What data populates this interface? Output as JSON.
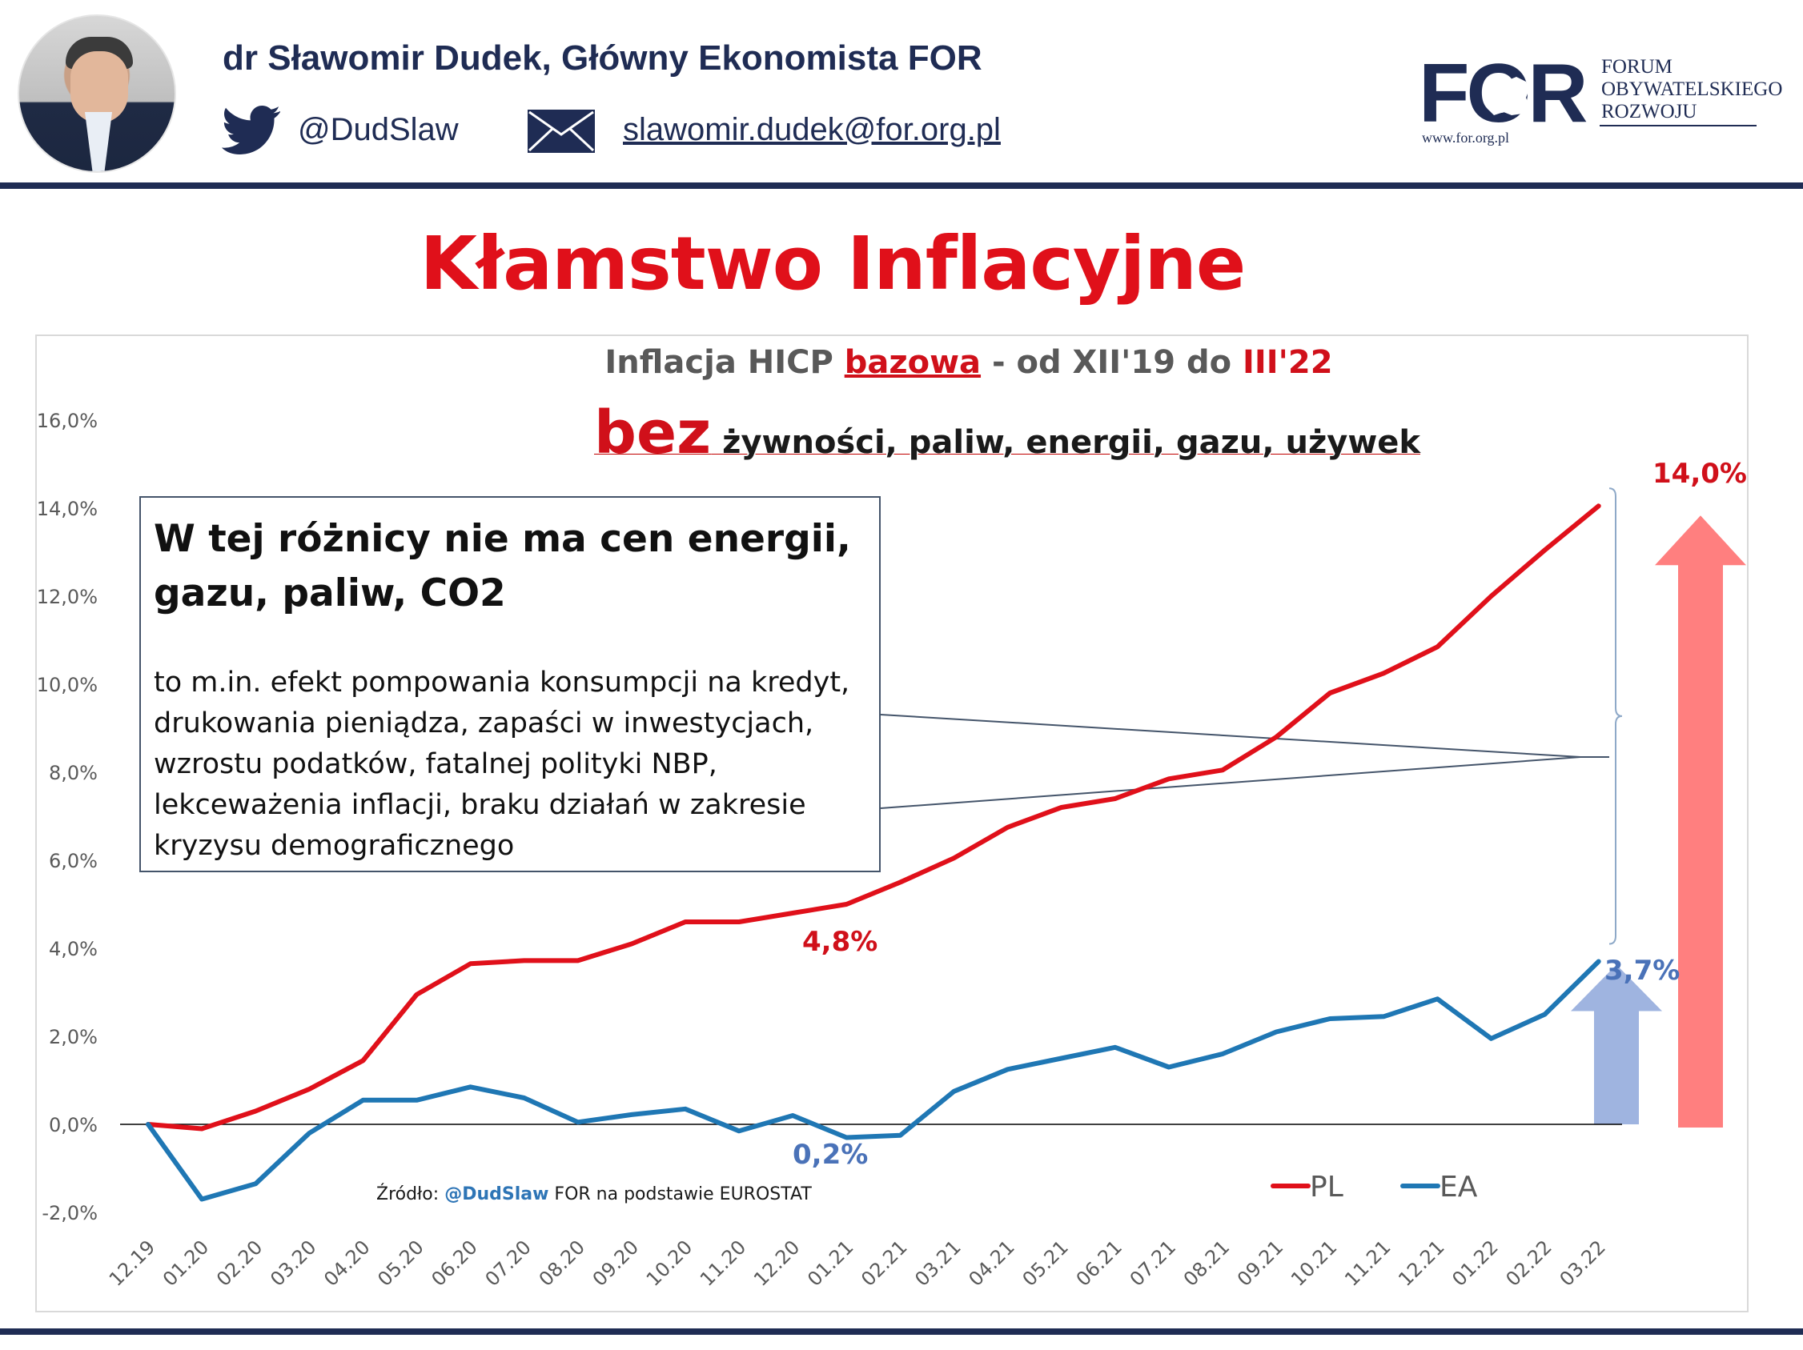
{
  "header": {
    "author": "dr Sławomir Dudek, Główny Ekonomista FOR",
    "twitter_handle": "@DudSlaw",
    "email": "slawomir.dudek@for.org.pl",
    "logo": {
      "mark": "FOR",
      "name_lines": [
        "FORUM",
        "OBYWATELSKIEGO",
        "ROZWOJU"
      ],
      "url": "www.for.org.pl"
    },
    "icons": [
      "avatar-photo",
      "twitter-bird-icon",
      "envelope-icon",
      "poland-map-icon"
    ],
    "colors": {
      "navy": "#1f2c54",
      "red": "#e0101a"
    }
  },
  "main_title": "Kłamstwo Inflacyjne",
  "subtitle": {
    "part1": "Inflacja HICP ",
    "part2": "bazowa",
    "part3": " - od XII'19 do ",
    "part4": "III'22"
  },
  "bez_line": {
    "big": "bez",
    "rest": " żywności, paliw, energii, gazu, używek"
  },
  "note": {
    "title_line1": "W tej różnicy nie ma cen energii,",
    "title_line2": "gazu, paliw, CO2",
    "body_lines": [
      "to m.in. efekt pompowania konsumpcji na kredyt,",
      "drukowania pieniądza, zapaści w inwestycjach,",
      "wzrostu podatków, fatalnej polityki NBP,",
      "lekceważenia inflacji, braku działań w zakresie",
      "kryzysu demograficznego"
    ]
  },
  "source": {
    "prefix": "Źródło: ",
    "handle": "@DudSlaw",
    "suffix": " FOR na podstawie EUROSTAT"
  },
  "chart_data": {
    "type": "line",
    "x": [
      "12.19",
      "01.20",
      "02.20",
      "03.20",
      "04.20",
      "05.20",
      "06.20",
      "07.20",
      "08.20",
      "09.20",
      "10.20",
      "11.20",
      "12.20",
      "01.21",
      "02.21",
      "03.21",
      "04.21",
      "05.21",
      "06.21",
      "07.21",
      "08.21",
      "09.21",
      "10.21",
      "11.21",
      "12.21",
      "01.22",
      "02.22",
      "03.22"
    ],
    "series": [
      {
        "name": "PL",
        "color": "#e0101a",
        "values": [
          0.0,
          -0.1,
          0.3,
          0.8,
          1.45,
          2.95,
          3.65,
          3.72,
          3.72,
          4.1,
          4.6,
          4.6,
          4.8,
          5.0,
          5.5,
          6.05,
          6.75,
          7.2,
          7.4,
          7.85,
          8.05,
          8.8,
          9.8,
          10.25,
          10.85,
          12.0,
          13.05,
          14.05
        ]
      },
      {
        "name": "EA",
        "color": "#1f77b4",
        "values": [
          0.0,
          -1.7,
          -1.35,
          -0.2,
          0.55,
          0.55,
          0.85,
          0.6,
          0.05,
          0.22,
          0.35,
          -0.15,
          0.2,
          -0.3,
          -0.25,
          0.75,
          1.25,
          1.5,
          1.75,
          1.3,
          1.6,
          2.1,
          2.4,
          2.45,
          2.85,
          1.95,
          2.5,
          3.7
        ]
      }
    ],
    "y_ticks": [
      "16,0%",
      "14,0%",
      "12,0%",
      "10,0%",
      "8,0%",
      "6,0%",
      "4,0%",
      "2,0%",
      "0,0%",
      "-2,0%"
    ],
    "ylim": [
      -2.0,
      16.0
    ],
    "annotations": {
      "pl_end": "14,0%",
      "ea_end": "3,7%",
      "pl_mid": "4,8%",
      "ea_mid": "0,2%"
    },
    "arrow_colors": {
      "pl": "#ff7f7f",
      "ea": "#9fb4e0"
    },
    "legend": {
      "position": "bottom-right",
      "entries": [
        "PL",
        "EA"
      ]
    },
    "grid": false,
    "zero_line": true
  }
}
